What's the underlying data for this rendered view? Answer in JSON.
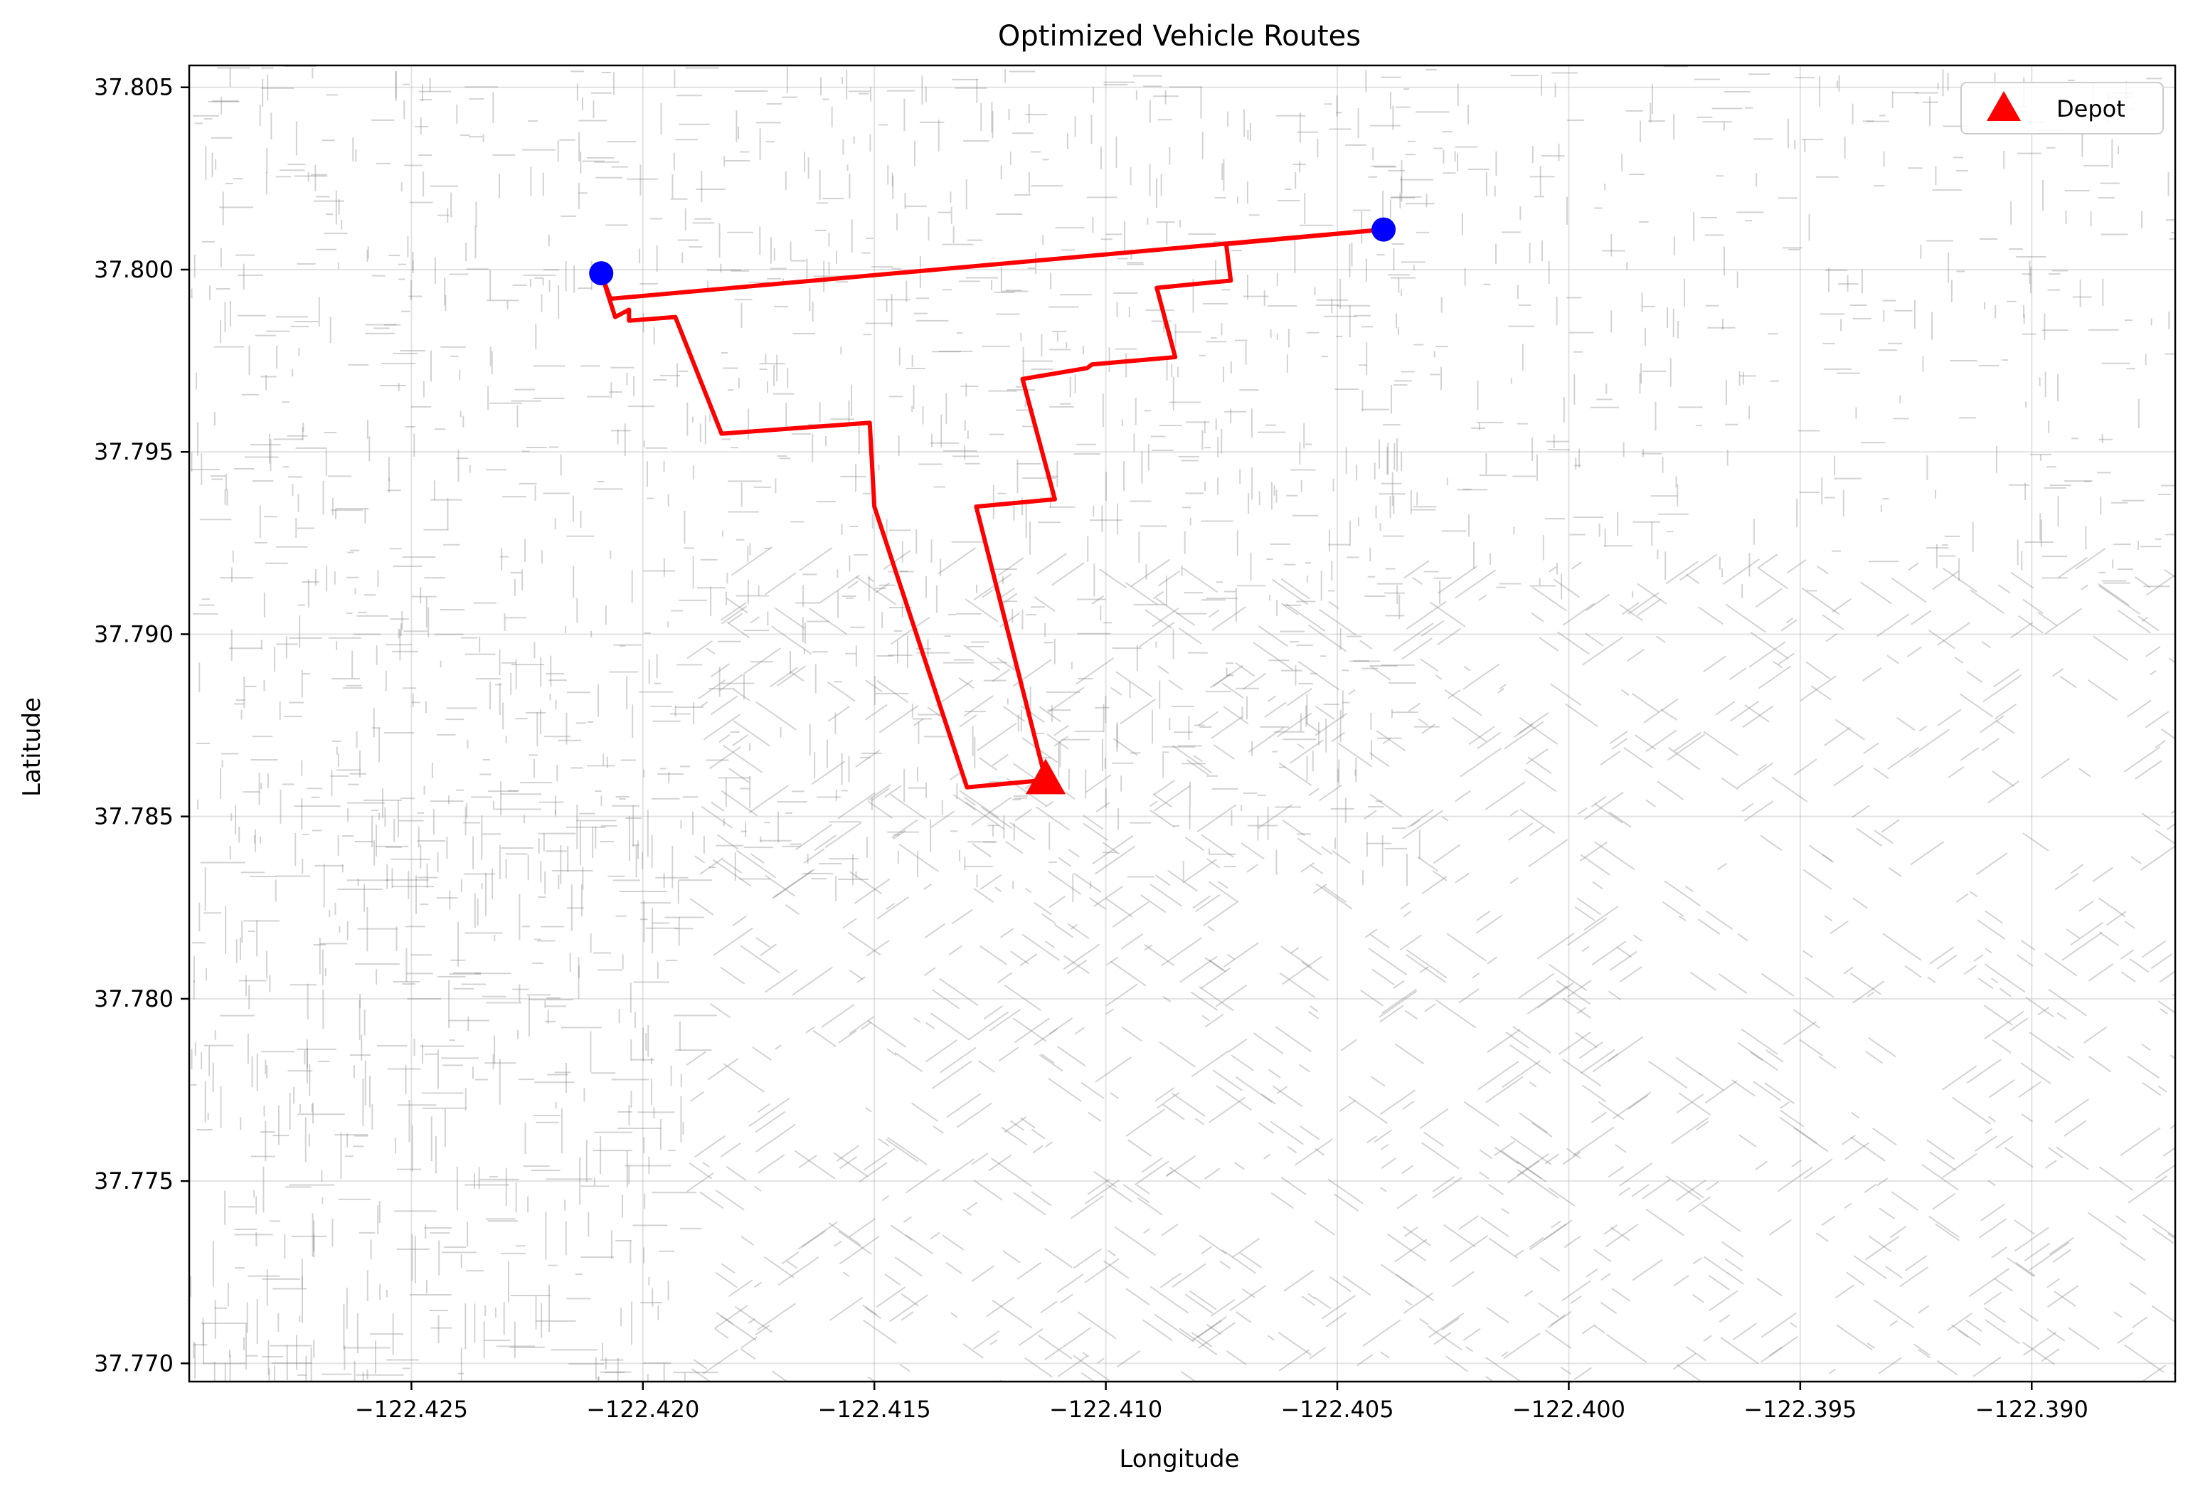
{
  "chart_data": {
    "type": "line",
    "title": "Optimized Vehicle Routes",
    "xlabel": "Longitude",
    "ylabel": "Latitude",
    "xlim": [
      -122.4298,
      -122.3869
    ],
    "ylim": [
      37.7695,
      37.8056
    ],
    "x_ticks": [
      -122.425,
      -122.42,
      -122.415,
      -122.41,
      -122.405,
      -122.4,
      -122.395,
      -122.39
    ],
    "x_tick_labels": [
      "−122.425",
      "−122.420",
      "−122.415",
      "−122.410",
      "−122.405",
      "−122.400",
      "−122.395",
      "−122.390"
    ],
    "y_ticks": [
      37.77,
      37.775,
      37.78,
      37.785,
      37.79,
      37.795,
      37.8,
      37.805
    ],
    "y_tick_labels": [
      "37.770",
      "37.775",
      "37.780",
      "37.785",
      "37.790",
      "37.795",
      "37.800",
      "37.805"
    ],
    "grid": true,
    "legend": {
      "placement": "top-right",
      "entries": [
        {
          "label": "Depot",
          "marker": "triangle",
          "color": "#ff0000"
        }
      ]
    },
    "depot": {
      "x": -122.4113,
      "y": 37.786
    },
    "stops": [
      {
        "x": -122.4209,
        "y": 37.7999
      },
      {
        "x": -122.404,
        "y": 37.8011
      }
    ],
    "route": {
      "color": "#ff0000",
      "points": [
        [
          -122.4113,
          37.786
        ],
        [
          -122.413,
          37.7858
        ],
        [
          -122.415,
          37.7935
        ],
        [
          -122.4151,
          37.7958
        ],
        [
          -122.4183,
          37.7955
        ],
        [
          -122.4193,
          37.7987
        ],
        [
          -122.4203,
          37.7986
        ],
        [
          -122.4203,
          37.7989
        ],
        [
          -122.4206,
          37.7987
        ],
        [
          -122.4207,
          37.7991
        ],
        [
          -122.4208,
          37.7995
        ],
        [
          -122.4209,
          37.7999
        ],
        [
          -122.4207,
          37.7992
        ],
        [
          -122.404,
          37.8011
        ],
        [
          -122.4074,
          37.8007
        ],
        [
          -122.4073,
          37.7997
        ],
        [
          -122.4089,
          37.7995
        ],
        [
          -122.4085,
          37.7976
        ],
        [
          -122.4103,
          37.7974
        ],
        [
          -122.4104,
          37.7973
        ],
        [
          -122.4118,
          37.797
        ],
        [
          -122.4111,
          37.7937
        ],
        [
          -122.4128,
          37.7935
        ],
        [
          -122.4113,
          37.786
        ]
      ]
    }
  }
}
